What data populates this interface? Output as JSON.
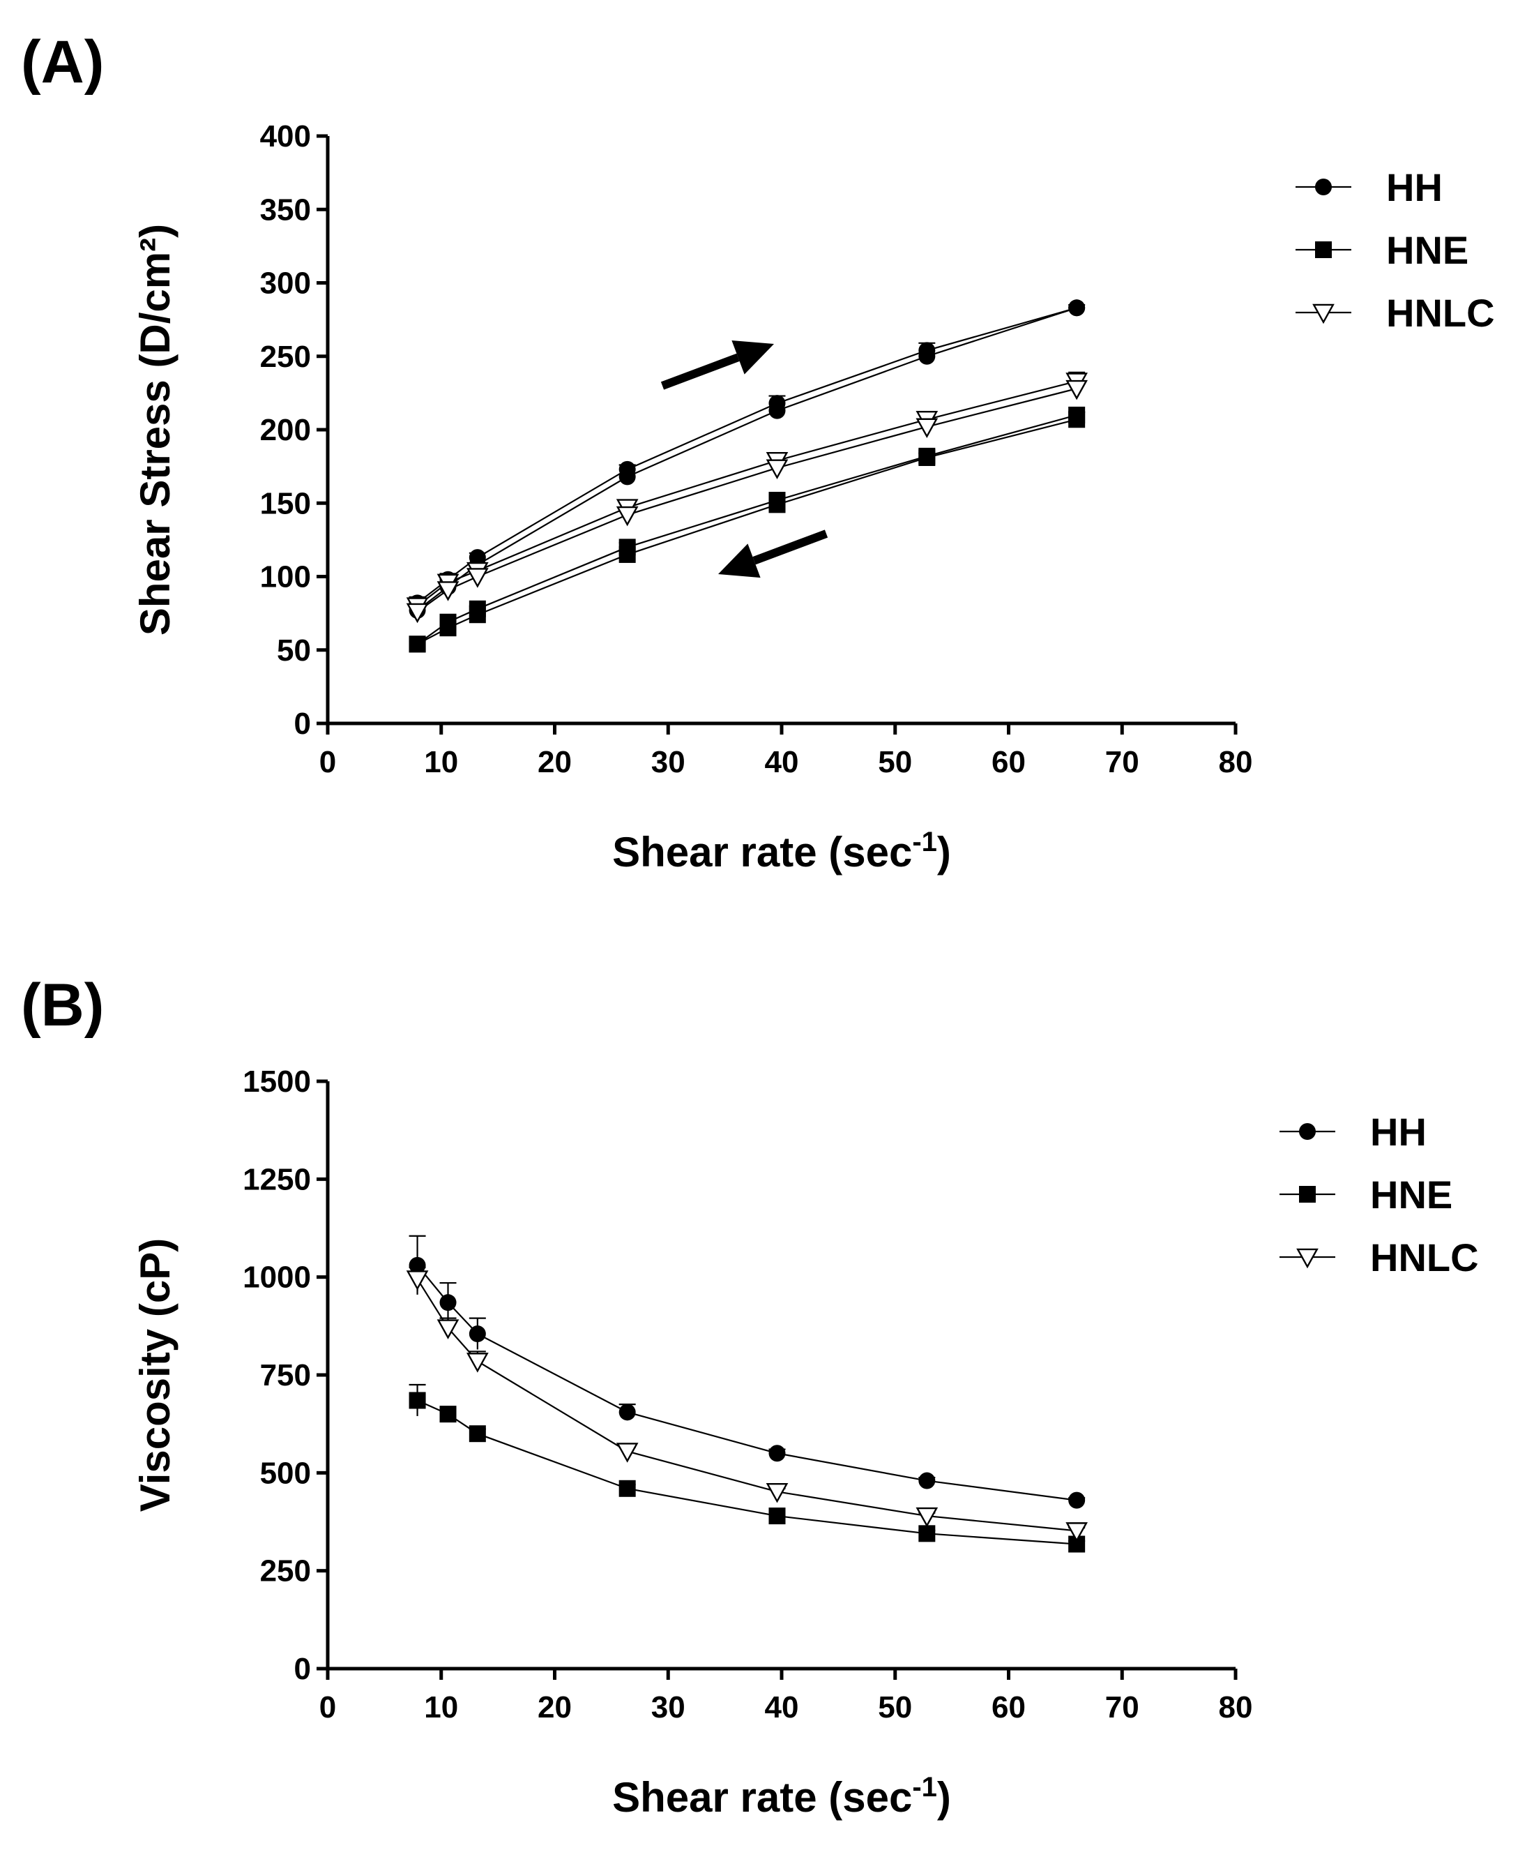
{
  "chart_data": [
    {
      "panel_label": "(A)",
      "type": "line",
      "xlabel": "Shear rate (sec",
      "xlabel_sup": "-1",
      "xlabel_end": ")",
      "ylabel": "Shear Stress (D/cm²)",
      "xlim": [
        0,
        80
      ],
      "ylim": [
        0,
        400
      ],
      "xticks": [
        0,
        10,
        20,
        30,
        40,
        50,
        60,
        70,
        80
      ],
      "yticks": [
        0,
        50,
        100,
        150,
        200,
        250,
        300,
        350,
        400
      ],
      "x": [
        7.9,
        10.6,
        13.2,
        26.4,
        39.6,
        52.8,
        66
      ],
      "legend_position": "right",
      "annotations": [
        {
          "type": "arrow",
          "direction": "up-right",
          "meaning": "increasing shear rate"
        },
        {
          "type": "arrow",
          "direction": "down-left",
          "meaning": "decreasing shear rate"
        }
      ],
      "series": [
        {
          "name": "HH",
          "marker": "filled-circle",
          "up": [
            82,
            98,
            113,
            173,
            218,
            254,
            283
          ],
          "down": [
            77,
            93,
            108,
            168,
            213,
            250,
            283
          ],
          "err_up": [
            4,
            4,
            3,
            3,
            5,
            5,
            2
          ]
        },
        {
          "name": "HNE",
          "marker": "filled-square",
          "up": [
            54,
            69,
            78,
            120,
            152,
            182,
            210
          ],
          "down": [
            54,
            65,
            74,
            115,
            149,
            181,
            207
          ],
          "err_up": [
            2,
            2,
            2,
            3,
            3,
            2,
            2
          ]
        },
        {
          "name": "HNLC",
          "marker": "open-triangle-down",
          "up": [
            80,
            96,
            104,
            147,
            179,
            207,
            233
          ],
          "down": [
            76,
            91,
            100,
            142,
            174,
            202,
            228
          ],
          "err_up": [
            6,
            3,
            3,
            3,
            3,
            3,
            6
          ]
        }
      ]
    },
    {
      "panel_label": "(B)",
      "type": "line",
      "xlabel": "Shear rate (sec",
      "xlabel_sup": "-1",
      "xlabel_end": ")",
      "ylabel": "Viscosity (cP)",
      "xlim": [
        0,
        80
      ],
      "ylim": [
        0,
        1500
      ],
      "xticks": [
        0,
        10,
        20,
        30,
        40,
        50,
        60,
        70,
        80
      ],
      "yticks": [
        0,
        250,
        500,
        750,
        1000,
        1250,
        1500
      ],
      "x": [
        7.9,
        10.6,
        13.2,
        26.4,
        39.6,
        52.8,
        66
      ],
      "legend_position": "right",
      "series": [
        {
          "name": "HH",
          "marker": "filled-circle",
          "values": [
            1030,
            935,
            855,
            655,
            550,
            480,
            430
          ],
          "err": [
            75,
            50,
            40,
            20,
            10,
            8,
            6
          ]
        },
        {
          "name": "HNE",
          "marker": "filled-square",
          "values": [
            685,
            650,
            600,
            460,
            390,
            345,
            318
          ],
          "err": [
            40,
            15,
            12,
            10,
            8,
            8,
            8
          ]
        },
        {
          "name": "HNLC",
          "marker": "open-triangle-down",
          "values": [
            995,
            870,
            785,
            555,
            452,
            390,
            352
          ],
          "err": [
            30,
            25,
            25,
            10,
            8,
            8,
            8
          ]
        }
      ]
    }
  ]
}
